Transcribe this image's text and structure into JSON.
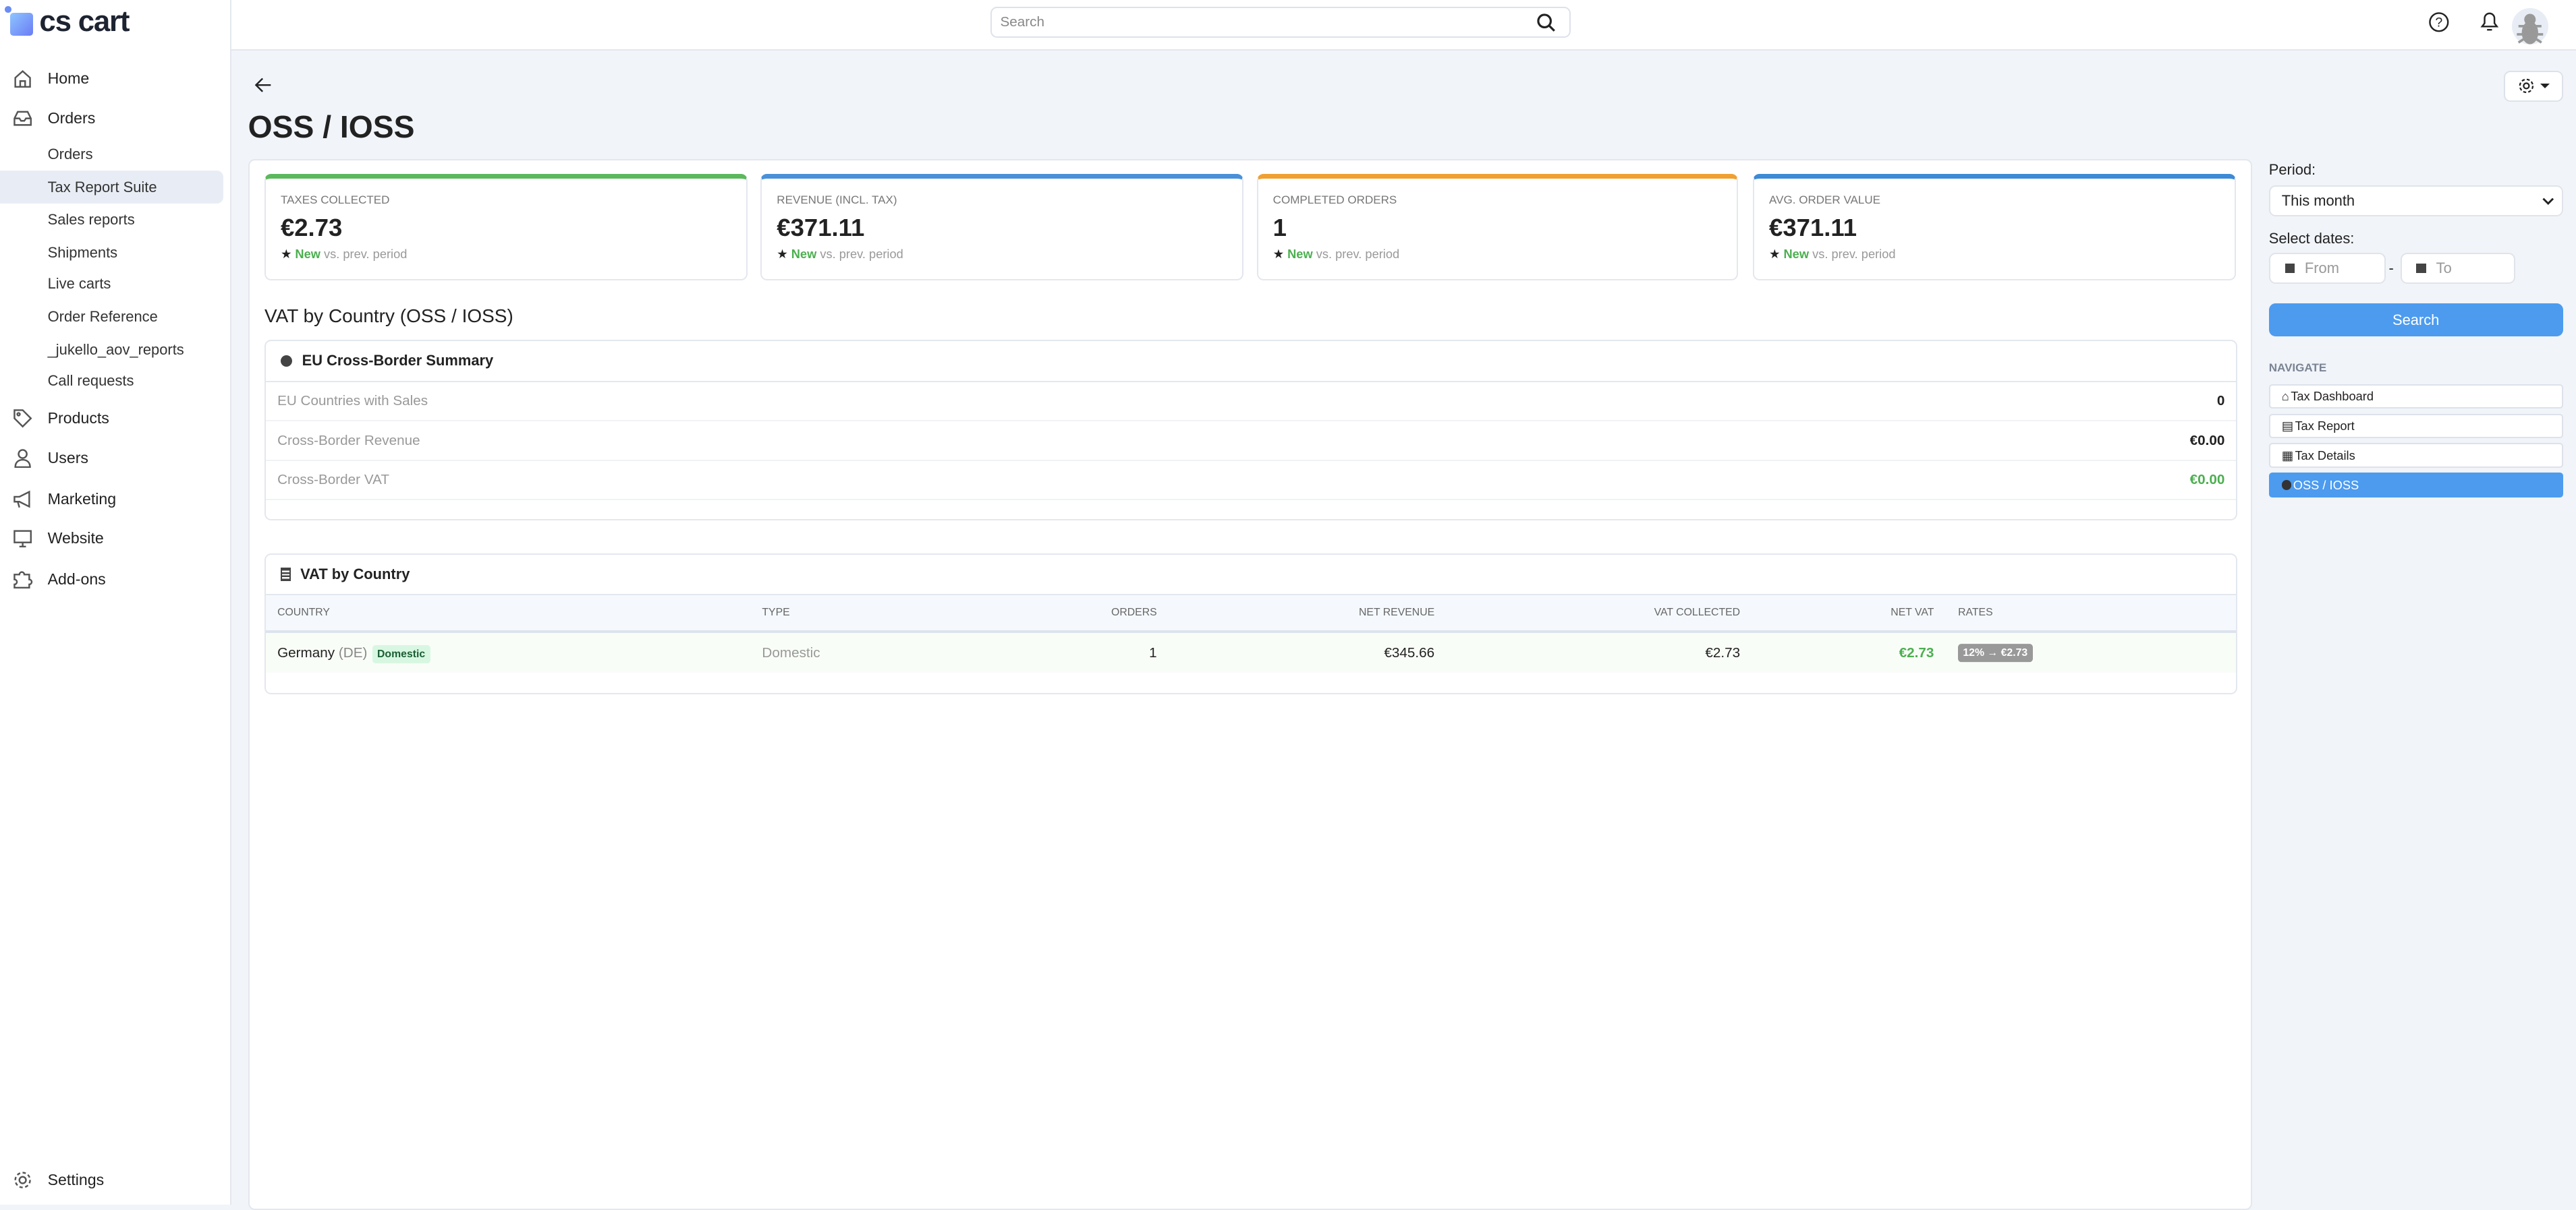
{
  "app": {
    "logo_text": "cs cart"
  },
  "sidebar": {
    "items": [
      {
        "label": "Home",
        "icon": "home-icon"
      },
      {
        "label": "Orders",
        "icon": "inbox-icon"
      },
      {
        "label": "Products",
        "icon": "tag-icon"
      },
      {
        "label": "Users",
        "icon": "user-icon"
      },
      {
        "label": "Marketing",
        "icon": "megaphone-icon"
      },
      {
        "label": "Website",
        "icon": "monitor-icon"
      },
      {
        "label": "Add-ons",
        "icon": "puzzle-icon"
      }
    ],
    "sub_items": [
      "Orders",
      "Tax Report Suite",
      "Sales reports",
      "Shipments",
      "Live carts",
      "Order Reference",
      "_jukello_aov_reports",
      "Call requests"
    ],
    "active_sub": "Tax Report Suite",
    "settings_label": "Settings"
  },
  "topbar": {
    "search_placeholder": "Search"
  },
  "page": {
    "title": "OSS / IOSS",
    "section_title": "VAT by Country (OSS / IOSS)"
  },
  "kpis": [
    {
      "label": "Taxes Collected",
      "value": "€2.73",
      "badge": "New",
      "compare": "vs. prev. period",
      "color": "#5cb85c"
    },
    {
      "label": "Revenue (incl. tax)",
      "value": "€371.11",
      "badge": "New",
      "compare": "vs. prev. period",
      "color": "#4a90d9"
    },
    {
      "label": "Completed Orders",
      "value": "1",
      "badge": "New",
      "compare": "vs. prev. period",
      "color": "#f0a030"
    },
    {
      "label": "Avg. Order Value",
      "value": "€371.11",
      "badge": "New",
      "compare": "vs. prev. period",
      "color": "#3d8ad6"
    }
  ],
  "summary": {
    "title": "EU Cross-Border Summary",
    "rows": [
      {
        "label": "EU Countries with Sales",
        "value": "0"
      },
      {
        "label": "Cross-Border Revenue",
        "value": "€0.00"
      },
      {
        "label": "Cross-Border VAT",
        "value": "€0.00"
      }
    ]
  },
  "vat_table": {
    "title": "VAT by Country",
    "columns": [
      "Country",
      "Type",
      "Orders",
      "Net Revenue",
      "VAT Collected",
      "Net VAT",
      "Rates"
    ],
    "rows": [
      {
        "country": "Germany",
        "code": "(DE)",
        "badge": "Domestic",
        "type": "Domestic",
        "orders": "1",
        "net_revenue": "€345.66",
        "vat_collected": "€2.73",
        "net_vat": "€2.73",
        "rates": "12% → €2.73"
      }
    ]
  },
  "filters": {
    "period_label": "Period:",
    "period_value": "This month",
    "dates_label": "Select dates:",
    "from_placeholder": "From",
    "to_placeholder": "To",
    "separator": "-",
    "search_label": "Search"
  },
  "navigate": {
    "heading": "NAVIGATE",
    "items": [
      {
        "label": "Tax Dashboard",
        "icon": "home-icon"
      },
      {
        "label": "Tax Report",
        "icon": "list-icon"
      },
      {
        "label": "Tax Details",
        "icon": "grid-icon"
      },
      {
        "label": "OSS / IOSS",
        "icon": "globe-icon",
        "active": true
      }
    ]
  },
  "colors": {
    "accent": "#4c9bef",
    "positive": "#4caf50"
  }
}
